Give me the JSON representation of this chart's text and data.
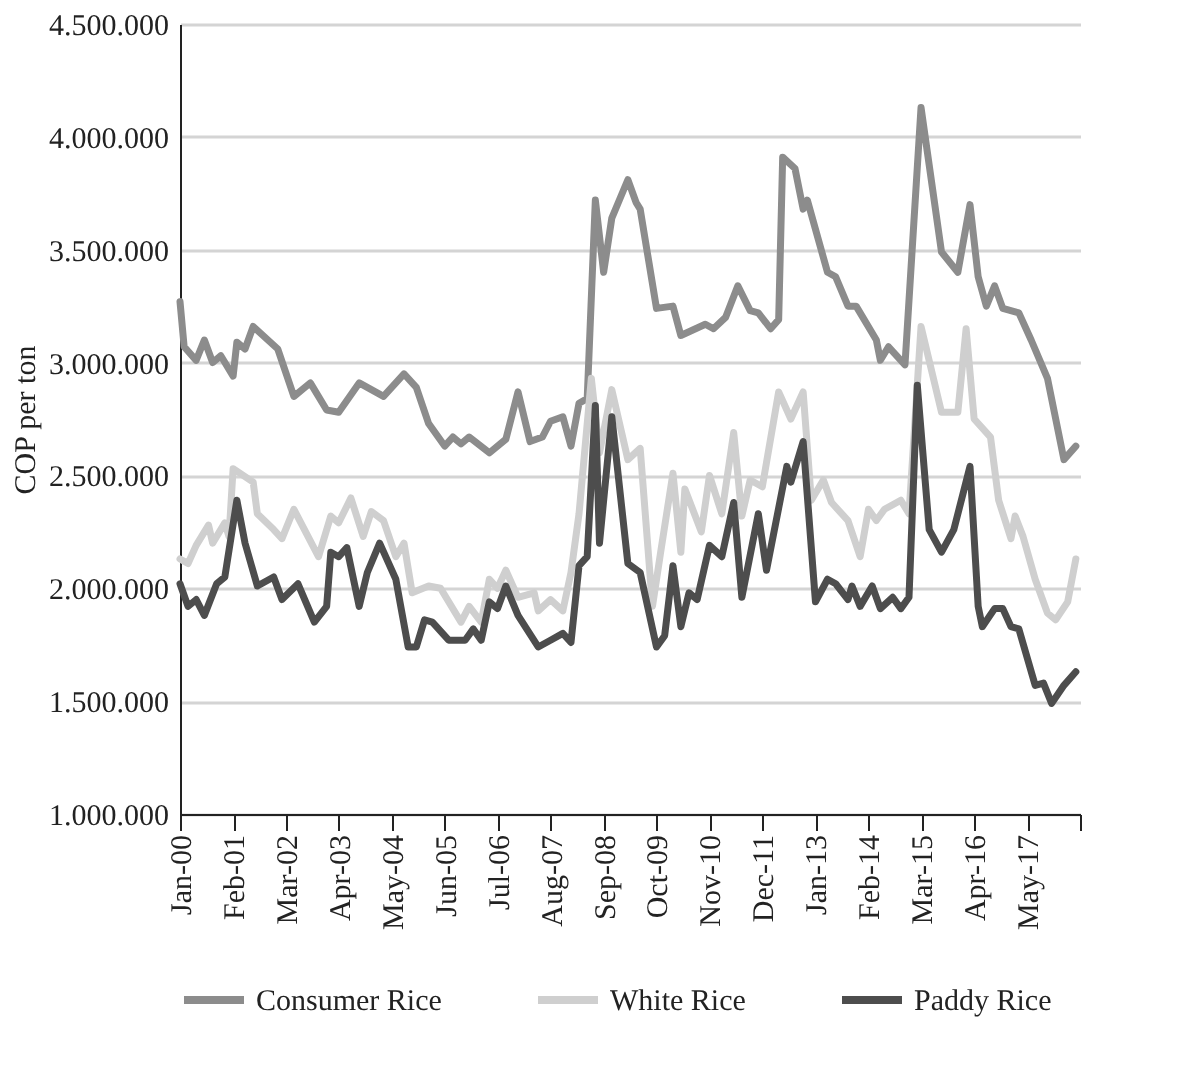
{
  "chart_data": {
    "type": "line",
    "ylabel": "COP per ton",
    "ylim": [
      1000000,
      4500000
    ],
    "yticks": [
      {
        "value": 1000000,
        "label": "1.000.000"
      },
      {
        "value": 1500000,
        "label": "1.500.000"
      },
      {
        "value": 2000000,
        "label": "2.000.000"
      },
      {
        "value": 2500000,
        "label": "2.500.000"
      },
      {
        "value": 3000000,
        "label": "3.000.000"
      },
      {
        "value": 3500000,
        "label": "3.500.000"
      },
      {
        "value": 4000000,
        "label": "4.000.000"
      },
      {
        "value": 4500000,
        "label": "4.500.000"
      }
    ],
    "xlim": [
      "2000-01",
      "2018-06"
    ],
    "xticks": [
      {
        "value": "2000-01",
        "label": "Jan-00"
      },
      {
        "value": "2001-02",
        "label": "Feb-01"
      },
      {
        "value": "2002-03",
        "label": "Mar-02"
      },
      {
        "value": "2003-04",
        "label": "Apr-03"
      },
      {
        "value": "2004-05",
        "label": "May-04"
      },
      {
        "value": "2005-06",
        "label": "Jun-05"
      },
      {
        "value": "2006-07",
        "label": "Jul-06"
      },
      {
        "value": "2007-08",
        "label": "Aug-07"
      },
      {
        "value": "2008-09",
        "label": "Sep-08"
      },
      {
        "value": "2009-10",
        "label": "Oct-09"
      },
      {
        "value": "2010-11",
        "label": "Nov-10"
      },
      {
        "value": "2011-12",
        "label": "Dec-11"
      },
      {
        "value": "2013-01",
        "label": "Jan-13"
      },
      {
        "value": "2014-02",
        "label": "Feb-14"
      },
      {
        "value": "2015-03",
        "label": "Mar-15"
      },
      {
        "value": "2016-04",
        "label": "Apr-16"
      },
      {
        "value": "2017-05",
        "label": "May-17"
      },
      {
        "value": "2018-06",
        "label": null
      }
    ],
    "grid": "y",
    "legend": "bottom",
    "marker": "none",
    "line_style": "solid",
    "series": [
      {
        "name": "Consumer Rice",
        "color": "#8c8c8c",
        "x": [
          "2000-01",
          "2000-02",
          "2000-05",
          "2000-07",
          "2000-09",
          "2000-11",
          "2001-02",
          "2001-03",
          "2001-05",
          "2001-07",
          "2002-01",
          "2002-05",
          "2002-09",
          "2003-01",
          "2003-04",
          "2003-09",
          "2003-12",
          "2004-03",
          "2004-08",
          "2004-11",
          "2005-02",
          "2005-06",
          "2005-08",
          "2005-10",
          "2005-12",
          "2006-05",
          "2006-09",
          "2006-12",
          "2007-03",
          "2007-06",
          "2007-08",
          "2007-11",
          "2008-01",
          "2008-03",
          "2008-05",
          "2008-07",
          "2008-09",
          "2008-11",
          "2009-03",
          "2009-05",
          "2009-06",
          "2009-10",
          "2010-02",
          "2010-04",
          "2010-10",
          "2010-12",
          "2011-03",
          "2011-06",
          "2011-09",
          "2011-11",
          "2012-02",
          "2012-04",
          "2012-05",
          "2012-08",
          "2012-10",
          "2012-11",
          "2013-04",
          "2013-06",
          "2013-09",
          "2013-11",
          "2014-04",
          "2014-05",
          "2014-07",
          "2014-11",
          "2015-03",
          "2015-08",
          "2015-12",
          "2016-03",
          "2016-05",
          "2016-07",
          "2016-09",
          "2016-11",
          "2017-03",
          "2017-06",
          "2017-10",
          "2018-02",
          "2018-05"
        ],
        "values": [
          3270000,
          3070000,
          3010000,
          3100000,
          3000000,
          3030000,
          2940000,
          3090000,
          3060000,
          3160000,
          3060000,
          2850000,
          2910000,
          2790000,
          2780000,
          2910000,
          2880000,
          2850000,
          2950000,
          2890000,
          2730000,
          2630000,
          2670000,
          2640000,
          2670000,
          2600000,
          2660000,
          2870000,
          2650000,
          2670000,
          2740000,
          2760000,
          2630000,
          2820000,
          2840000,
          3720000,
          3400000,
          3640000,
          3810000,
          3710000,
          3680000,
          3240000,
          3250000,
          3120000,
          3170000,
          3150000,
          3200000,
          3340000,
          3230000,
          3220000,
          3150000,
          3190000,
          3910000,
          3860000,
          3680000,
          3720000,
          3400000,
          3380000,
          3250000,
          3250000,
          3100000,
          3010000,
          3070000,
          2990000,
          4130000,
          3490000,
          3400000,
          3700000,
          3380000,
          3250000,
          3340000,
          3240000,
          3220000,
          3100000,
          2930000,
          2570000,
          2630000
        ]
      },
      {
        "name": "White Rice",
        "color": "#cfcfcf",
        "x": [
          "2000-01",
          "2000-03",
          "2000-05",
          "2000-08",
          "2000-09",
          "2000-12",
          "2001-01",
          "2001-02",
          "2001-07",
          "2001-08",
          "2001-12",
          "2002-02",
          "2002-05",
          "2002-11",
          "2003-02",
          "2003-04",
          "2003-07",
          "2003-10",
          "2003-12",
          "2004-03",
          "2004-06",
          "2004-08",
          "2004-10",
          "2005-02",
          "2005-05",
          "2005-10",
          "2005-12",
          "2006-03",
          "2006-05",
          "2006-07",
          "2006-09",
          "2006-12",
          "2007-04",
          "2007-05",
          "2007-08",
          "2007-11",
          "2008-01",
          "2008-03",
          "2008-06",
          "2008-08",
          "2008-11",
          "2009-03",
          "2009-06",
          "2009-09",
          "2009-11",
          "2010-02",
          "2010-04",
          "2010-05",
          "2010-09",
          "2010-11",
          "2011-02",
          "2011-05",
          "2011-07",
          "2011-09",
          "2011-12",
          "2012-04",
          "2012-07",
          "2012-10",
          "2012-12",
          "2013-03",
          "2013-05",
          "2013-09",
          "2013-12",
          "2014-02",
          "2014-04",
          "2014-06",
          "2014-10",
          "2014-12",
          "2015-03",
          "2015-08",
          "2015-12",
          "2016-02",
          "2016-04",
          "2016-08",
          "2016-10",
          "2017-01",
          "2017-02",
          "2017-04",
          "2017-07",
          "2017-10",
          "2017-12",
          "2018-03",
          "2018-05"
        ],
        "values": [
          2130000,
          2110000,
          2190000,
          2280000,
          2200000,
          2290000,
          2230000,
          2530000,
          2470000,
          2330000,
          2260000,
          2220000,
          2350000,
          2140000,
          2320000,
          2290000,
          2400000,
          2230000,
          2340000,
          2300000,
          2140000,
          2200000,
          1980000,
          2010000,
          2000000,
          1850000,
          1920000,
          1850000,
          2040000,
          2000000,
          2080000,
          1960000,
          1980000,
          1900000,
          1950000,
          1900000,
          2070000,
          2330000,
          2930000,
          2600000,
          2880000,
          2570000,
          2620000,
          1920000,
          2160000,
          2510000,
          2160000,
          2440000,
          2250000,
          2500000,
          2330000,
          2690000,
          2320000,
          2480000,
          2450000,
          2870000,
          2750000,
          2870000,
          2390000,
          2480000,
          2380000,
          2300000,
          2140000,
          2350000,
          2300000,
          2350000,
          2390000,
          2330000,
          3160000,
          2780000,
          2780000,
          3150000,
          2750000,
          2670000,
          2390000,
          2220000,
          2320000,
          2230000,
          2040000,
          1890000,
          1860000,
          1940000,
          2130000
        ]
      },
      {
        "name": "Paddy Rice",
        "color": "#4d4d4d",
        "x": [
          "2000-01",
          "2000-03",
          "2000-05",
          "2000-07",
          "2000-10",
          "2000-12",
          "2001-03",
          "2001-05",
          "2001-08",
          "2001-12",
          "2002-02",
          "2002-06",
          "2002-10",
          "2003-01",
          "2003-02",
          "2003-04",
          "2003-06",
          "2003-09",
          "2003-11",
          "2004-02",
          "2004-06",
          "2004-09",
          "2004-11",
          "2005-01",
          "2005-03",
          "2005-07",
          "2005-11",
          "2006-01",
          "2006-03",
          "2006-05",
          "2006-07",
          "2006-09",
          "2006-12",
          "2007-05",
          "2007-08",
          "2007-11",
          "2008-01",
          "2008-03",
          "2008-05",
          "2008-07",
          "2008-08",
          "2008-11",
          "2009-03",
          "2009-06",
          "2009-10",
          "2009-12",
          "2010-02",
          "2010-04",
          "2010-06",
          "2010-08",
          "2010-11",
          "2011-02",
          "2011-05",
          "2011-07",
          "2011-11",
          "2012-01",
          "2012-06",
          "2012-07",
          "2012-10",
          "2013-01",
          "2013-04",
          "2013-06",
          "2013-09",
          "2013-10",
          "2013-12",
          "2014-03",
          "2014-05",
          "2014-08",
          "2014-10",
          "2014-12",
          "2015-02",
          "2015-05",
          "2015-08",
          "2015-11",
          "2016-03",
          "2016-05",
          "2016-06",
          "2016-09",
          "2016-11",
          "2017-01",
          "2017-03",
          "2017-07",
          "2017-09",
          "2017-11",
          "2018-02",
          "2018-05"
        ],
        "values": [
          2020000,
          1920000,
          1950000,
          1880000,
          2020000,
          2050000,
          2390000,
          2200000,
          2010000,
          2050000,
          1950000,
          2020000,
          1850000,
          1920000,
          2160000,
          2140000,
          2180000,
          1920000,
          2070000,
          2200000,
          2040000,
          1740000,
          1740000,
          1860000,
          1850000,
          1770000,
          1770000,
          1820000,
          1770000,
          1940000,
          1910000,
          2010000,
          1880000,
          1740000,
          1770000,
          1800000,
          1760000,
          2100000,
          2140000,
          2810000,
          2200000,
          2760000,
          2110000,
          2070000,
          1740000,
          1790000,
          2100000,
          1830000,
          1980000,
          1950000,
          2190000,
          2140000,
          2380000,
          1960000,
          2330000,
          2080000,
          2540000,
          2470000,
          2650000,
          1940000,
          2040000,
          2020000,
          1950000,
          2010000,
          1920000,
          2010000,
          1910000,
          1960000,
          1910000,
          1960000,
          2900000,
          2260000,
          2160000,
          2260000,
          2540000,
          1920000,
          1830000,
          1910000,
          1910000,
          1830000,
          1820000,
          1570000,
          1580000,
          1490000,
          1570000,
          1630000
        ]
      }
    ]
  }
}
